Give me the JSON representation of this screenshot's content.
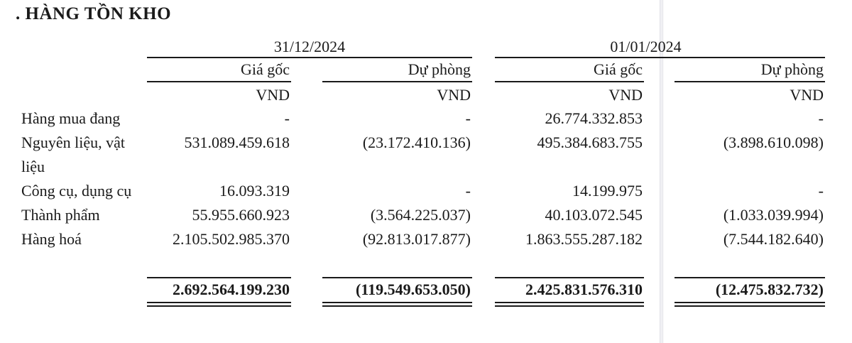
{
  "title": ". HÀNG TỒN KHO",
  "colors": {
    "background": "#ffffff",
    "text": "#1a1a1a",
    "rule": "#1a1a1a",
    "crease_line": "#e6e6ec"
  },
  "table": {
    "group_headers": [
      "31/12/2024",
      "01/01/2024"
    ],
    "sub_headers": [
      "Giá gốc",
      "Dự phòng",
      "Giá gốc",
      "Dự phòng"
    ],
    "units": [
      "VND",
      "VND",
      "VND",
      "VND"
    ],
    "rows": [
      {
        "label": "Hàng mua đang",
        "values": [
          "-",
          "-",
          "26.774.332.853",
          "-"
        ]
      },
      {
        "label": "Nguyên liệu, vật liệu",
        "values": [
          "531.089.459.618",
          "(23.172.410.136)",
          "495.384.683.755",
          "(3.898.610.098)"
        ]
      },
      {
        "label": "Công cụ, dụng cụ",
        "values": [
          "16.093.319",
          "-",
          "14.199.975",
          "-"
        ]
      },
      {
        "label": "Thành phẩm",
        "values": [
          "55.955.660.923",
          "(3.564.225.037)",
          "40.103.072.545",
          "(1.033.039.994)"
        ]
      },
      {
        "label": "Hàng hoá",
        "values": [
          "2.105.502.985.370",
          "(92.813.017.877)",
          "1.863.555.287.182",
          "(7.544.182.640)"
        ]
      }
    ],
    "total": {
      "values": [
        "2.692.564.199.230",
        "(119.549.653.050)",
        "2.425.831.576.310",
        "(12.475.832.732)"
      ]
    }
  }
}
